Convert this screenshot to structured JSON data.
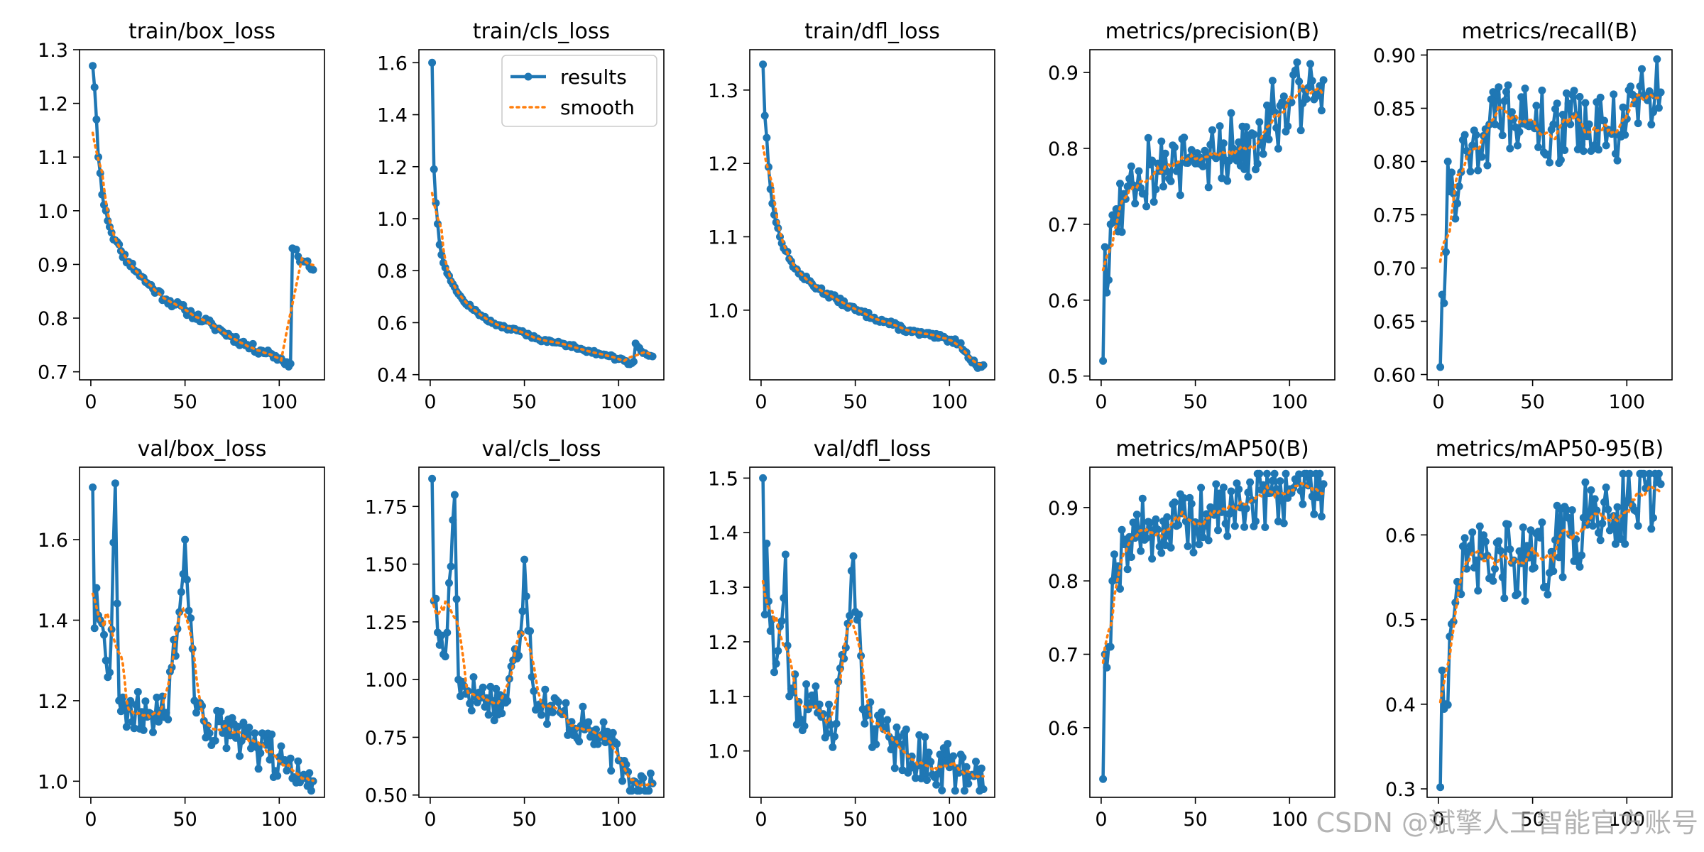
{
  "figure_title": "",
  "watermark": "CSDN @斌擎人工智能官方账号",
  "legend": {
    "results_label": "results",
    "smooth_label": "smooth",
    "placement": "top-right of panel 2"
  },
  "colors": {
    "results": "#1f77b4",
    "smooth": "#ff7f0e",
    "axis": "#000000"
  },
  "chart_data": [
    {
      "type": "line",
      "title": "train/box_loss",
      "xlim": [
        -6,
        124
      ],
      "ylim": [
        0.685,
        1.3
      ],
      "xticks": [
        0,
        50,
        100
      ],
      "yticks": [
        0.7,
        0.8,
        0.9,
        1.0,
        1.1,
        1.2,
        1.3
      ],
      "anchors": [
        [
          1,
          1.27
        ],
        [
          2,
          1.23
        ],
        [
          3,
          1.17
        ],
        [
          4,
          1.1
        ],
        [
          5,
          1.07
        ],
        [
          6,
          1.03
        ],
        [
          8,
          1.0
        ],
        [
          10,
          0.97
        ],
        [
          13,
          0.945
        ],
        [
          16,
          0.925
        ],
        [
          20,
          0.905
        ],
        [
          25,
          0.885
        ],
        [
          30,
          0.865
        ],
        [
          35,
          0.85
        ],
        [
          40,
          0.835
        ],
        [
          45,
          0.825
        ],
        [
          50,
          0.815
        ],
        [
          55,
          0.805
        ],
        [
          60,
          0.795
        ],
        [
          65,
          0.785
        ],
        [
          70,
          0.775
        ],
        [
          75,
          0.765
        ],
        [
          80,
          0.755
        ],
        [
          85,
          0.745
        ],
        [
          90,
          0.74
        ],
        [
          95,
          0.735
        ],
        [
          100,
          0.725
        ],
        [
          104,
          0.718
        ],
        [
          106,
          0.715
        ],
        [
          107,
          0.93
        ],
        [
          110,
          0.915
        ],
        [
          114,
          0.905
        ],
        [
          118,
          0.89
        ]
      ],
      "noise": 0.008,
      "seed": 11
    },
    {
      "type": "line",
      "title": "train/cls_loss",
      "xlim": [
        -6,
        124
      ],
      "ylim": [
        0.38,
        1.65
      ],
      "xticks": [
        0,
        50,
        100
      ],
      "yticks": [
        0.4,
        0.6,
        0.8,
        1.0,
        1.2,
        1.4,
        1.6
      ],
      "anchors": [
        [
          1,
          1.6
        ],
        [
          2,
          1.19
        ],
        [
          3,
          1.06
        ],
        [
          4,
          0.98
        ],
        [
          5,
          0.9
        ],
        [
          7,
          0.83
        ],
        [
          10,
          0.78
        ],
        [
          14,
          0.72
        ],
        [
          18,
          0.68
        ],
        [
          25,
          0.64
        ],
        [
          30,
          0.61
        ],
        [
          40,
          0.58
        ],
        [
          50,
          0.56
        ],
        [
          60,
          0.53
        ],
        [
          70,
          0.52
        ],
        [
          80,
          0.5
        ],
        [
          90,
          0.48
        ],
        [
          100,
          0.46
        ],
        [
          106,
          0.44
        ],
        [
          108,
          0.45
        ],
        [
          109,
          0.52
        ],
        [
          112,
          0.49
        ],
        [
          118,
          0.47
        ]
      ],
      "noise": 0.007,
      "seed": 12,
      "legend": true
    },
    {
      "type": "line",
      "title": "train/dfl_loss",
      "xlim": [
        -6,
        124
      ],
      "ylim": [
        0.905,
        1.355
      ],
      "xticks": [
        0,
        50,
        100
      ],
      "yticks": [
        1.0,
        1.1,
        1.2,
        1.3
      ],
      "anchors": [
        [
          1,
          1.335
        ],
        [
          2,
          1.265
        ],
        [
          3,
          1.235
        ],
        [
          4,
          1.195
        ],
        [
          5,
          1.165
        ],
        [
          7,
          1.13
        ],
        [
          10,
          1.1
        ],
        [
          15,
          1.07
        ],
        [
          20,
          1.05
        ],
        [
          30,
          1.03
        ],
        [
          40,
          1.015
        ],
        [
          50,
          1.0
        ],
        [
          60,
          0.99
        ],
        [
          70,
          0.98
        ],
        [
          80,
          0.97
        ],
        [
          90,
          0.965
        ],
        [
          100,
          0.96
        ],
        [
          106,
          0.955
        ],
        [
          110,
          0.935
        ],
        [
          114,
          0.925
        ],
        [
          118,
          0.925
        ]
      ],
      "noise": 0.004,
      "seed": 13
    },
    {
      "type": "line",
      "title": "metrics/precision(B)",
      "xlim": [
        -6,
        124
      ],
      "ylim": [
        0.495,
        0.93
      ],
      "xticks": [
        0,
        50,
        100
      ],
      "yticks": [
        0.5,
        0.6,
        0.7,
        0.8,
        0.9
      ],
      "anchors": [
        [
          1,
          0.52
        ],
        [
          2,
          0.67
        ],
        [
          3,
          0.61
        ],
        [
          5,
          0.7
        ],
        [
          8,
          0.72
        ],
        [
          12,
          0.74
        ],
        [
          15,
          0.76
        ],
        [
          20,
          0.77
        ],
        [
          30,
          0.78
        ],
        [
          40,
          0.77
        ],
        [
          50,
          0.78
        ],
        [
          60,
          0.79
        ],
        [
          70,
          0.8
        ],
        [
          80,
          0.82
        ],
        [
          90,
          0.85
        ],
        [
          100,
          0.86
        ],
        [
          110,
          0.88
        ],
        [
          118,
          0.89
        ]
      ],
      "noise": 0.055,
      "seed": 14
    },
    {
      "type": "line",
      "title": "metrics/recall(B)",
      "xlim": [
        -6,
        124
      ],
      "ylim": [
        0.595,
        0.905
      ],
      "xticks": [
        0,
        50,
        100
      ],
      "yticks": [
        0.6,
        0.65,
        0.7,
        0.75,
        0.8,
        0.85,
        0.9
      ],
      "anchors": [
        [
          1,
          0.607
        ],
        [
          2,
          0.675
        ],
        [
          3,
          0.667
        ],
        [
          4,
          0.715
        ],
        [
          5,
          0.8
        ],
        [
          8,
          0.77
        ],
        [
          12,
          0.79
        ],
        [
          15,
          0.81
        ],
        [
          20,
          0.825
        ],
        [
          30,
          0.835
        ],
        [
          40,
          0.84
        ],
        [
          50,
          0.835
        ],
        [
          60,
          0.83
        ],
        [
          70,
          0.835
        ],
        [
          80,
          0.835
        ],
        [
          90,
          0.83
        ],
        [
          100,
          0.84
        ],
        [
          110,
          0.86
        ],
        [
          118,
          0.865
        ]
      ],
      "noise": 0.035,
      "seed": 15
    },
    {
      "type": "line",
      "title": "val/box_loss",
      "xlim": [
        -6,
        124
      ],
      "ylim": [
        0.96,
        1.78
      ],
      "xticks": [
        0,
        50,
        100
      ],
      "yticks": [
        1.0,
        1.2,
        1.4,
        1.6
      ],
      "anchors": [
        [
          1,
          1.73
        ],
        [
          2,
          1.38
        ],
        [
          3,
          1.48
        ],
        [
          5,
          1.4
        ],
        [
          8,
          1.3
        ],
        [
          10,
          1.27
        ],
        [
          13,
          1.74
        ],
        [
          15,
          1.2
        ],
        [
          20,
          1.18
        ],
        [
          30,
          1.16
        ],
        [
          40,
          1.17
        ],
        [
          48,
          1.47
        ],
        [
          50,
          1.6
        ],
        [
          55,
          1.2
        ],
        [
          60,
          1.15
        ],
        [
          70,
          1.12
        ],
        [
          80,
          1.1
        ],
        [
          90,
          1.07
        ],
        [
          100,
          1.06
        ],
        [
          105,
          1.05
        ],
        [
          108,
          1.01
        ],
        [
          118,
          1.0
        ]
      ],
      "noise": 0.055,
      "seed": 16
    },
    {
      "type": "line",
      "title": "val/cls_loss",
      "xlim": [
        -6,
        124
      ],
      "ylim": [
        0.49,
        1.92
      ],
      "xticks": [
        0,
        50,
        100
      ],
      "yticks": [
        0.5,
        0.75,
        1.0,
        1.25,
        1.5,
        1.75
      ],
      "anchors": [
        [
          1,
          1.87
        ],
        [
          2,
          1.34
        ],
        [
          3,
          1.35
        ],
        [
          5,
          1.15
        ],
        [
          8,
          1.1
        ],
        [
          13,
          1.8
        ],
        [
          15,
          1.0
        ],
        [
          20,
          0.95
        ],
        [
          30,
          0.92
        ],
        [
          40,
          0.9
        ],
        [
          48,
          1.2
        ],
        [
          50,
          1.52
        ],
        [
          55,
          0.95
        ],
        [
          60,
          0.9
        ],
        [
          70,
          0.85
        ],
        [
          80,
          0.8
        ],
        [
          90,
          0.75
        ],
        [
          100,
          0.65
        ],
        [
          105,
          0.6
        ],
        [
          108,
          0.56
        ],
        [
          118,
          0.55
        ]
      ],
      "noise": 0.09,
      "seed": 17
    },
    {
      "type": "line",
      "title": "val/dfl_loss",
      "xlim": [
        -6,
        124
      ],
      "ylim": [
        0.915,
        1.52
      ],
      "xticks": [
        0,
        50,
        100
      ],
      "yticks": [
        1.0,
        1.1,
        1.2,
        1.3,
        1.4,
        1.5
      ],
      "anchors": [
        [
          1,
          1.5
        ],
        [
          2,
          1.25
        ],
        [
          3,
          1.38
        ],
        [
          5,
          1.22
        ],
        [
          8,
          1.16
        ],
        [
          13,
          1.36
        ],
        [
          15,
          1.1
        ],
        [
          20,
          1.09
        ],
        [
          30,
          1.07
        ],
        [
          40,
          1.05
        ],
        [
          48,
          1.33
        ],
        [
          52,
          1.25
        ],
        [
          55,
          1.05
        ],
        [
          60,
          1.04
        ],
        [
          70,
          1.02
        ],
        [
          80,
          0.99
        ],
        [
          90,
          0.98
        ],
        [
          100,
          0.97
        ],
        [
          105,
          0.96
        ],
        [
          110,
          0.94
        ],
        [
          118,
          0.93
        ]
      ],
      "noise": 0.05,
      "seed": 18
    },
    {
      "type": "line",
      "title": "metrics/mAP50(B)",
      "xlim": [
        -6,
        124
      ],
      "ylim": [
        0.505,
        0.955
      ],
      "xticks": [
        0,
        50,
        100
      ],
      "yticks": [
        0.6,
        0.7,
        0.8,
        0.9
      ],
      "anchors": [
        [
          1,
          0.53
        ],
        [
          2,
          0.7
        ],
        [
          4,
          0.71
        ],
        [
          6,
          0.8
        ],
        [
          9,
          0.82
        ],
        [
          12,
          0.85
        ],
        [
          15,
          0.86
        ],
        [
          20,
          0.87
        ],
        [
          30,
          0.87
        ],
        [
          40,
          0.875
        ],
        [
          50,
          0.88
        ],
        [
          60,
          0.89
        ],
        [
          70,
          0.9
        ],
        [
          80,
          0.91
        ],
        [
          90,
          0.92
        ],
        [
          100,
          0.925
        ],
        [
          110,
          0.93
        ],
        [
          118,
          0.932
        ]
      ],
      "noise": 0.045,
      "seed": 19
    },
    {
      "type": "line",
      "title": "metrics/mAP50-95(B)",
      "xlim": [
        -6,
        124
      ],
      "ylim": [
        0.29,
        0.68
      ],
      "xticks": [
        0,
        50,
        100
      ],
      "yticks": [
        0.3,
        0.4,
        0.5,
        0.6
      ],
      "anchors": [
        [
          1,
          0.302
        ],
        [
          2,
          0.44
        ],
        [
          4,
          0.4
        ],
        [
          6,
          0.48
        ],
        [
          9,
          0.52
        ],
        [
          12,
          0.53
        ],
        [
          15,
          0.56
        ],
        [
          20,
          0.57
        ],
        [
          30,
          0.56
        ],
        [
          40,
          0.57
        ],
        [
          50,
          0.56
        ],
        [
          60,
          0.58
        ],
        [
          70,
          0.6
        ],
        [
          80,
          0.62
        ],
        [
          90,
          0.63
        ],
        [
          100,
          0.64
        ],
        [
          110,
          0.655
        ],
        [
          118,
          0.66
        ]
      ],
      "noise": 0.05,
      "seed": 20
    }
  ]
}
